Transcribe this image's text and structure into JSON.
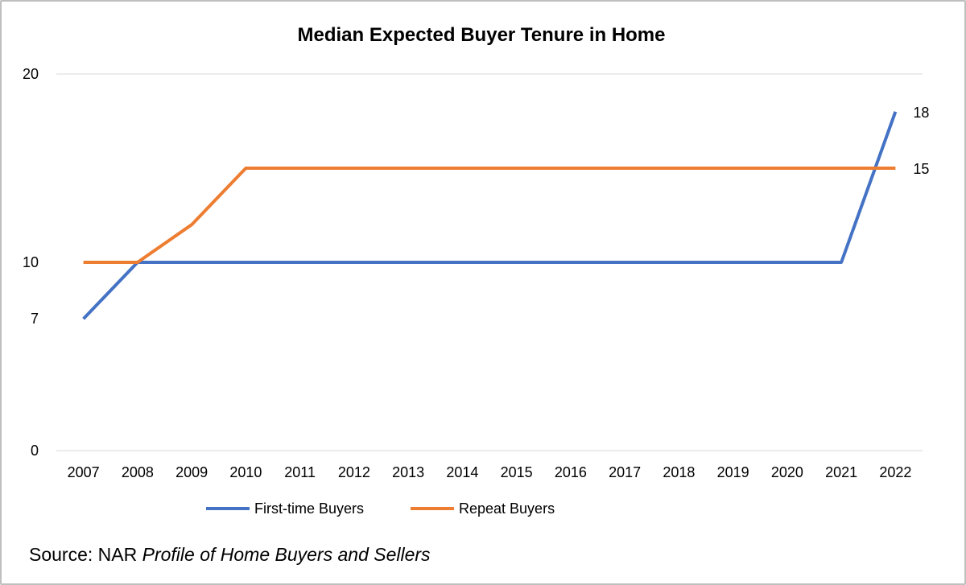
{
  "chart_data": {
    "type": "line",
    "title": "Median Expected Buyer Tenure in Home",
    "xlabel": "",
    "ylabel": "",
    "categories": [
      "2007",
      "2008",
      "2009",
      "2010",
      "2011",
      "2012",
      "2013",
      "2014",
      "2015",
      "2016",
      "2017",
      "2018",
      "2019",
      "2020",
      "2021",
      "2022"
    ],
    "ylim": [
      0,
      20
    ],
    "y_ticks": [
      "0",
      "7",
      "10",
      "20"
    ],
    "y_tick_values": [
      0,
      7,
      10,
      20
    ],
    "grid": "horizontal",
    "legend_position": "bottom",
    "series": [
      {
        "name": "First-time Buyers",
        "color": "#4472c4",
        "values": [
          7,
          10,
          10,
          10,
          10,
          10,
          10,
          10,
          10,
          10,
          10,
          10,
          10,
          10,
          10,
          18
        ],
        "end_label": "18"
      },
      {
        "name": "Repeat Buyers",
        "color": "#ed7d31",
        "values": [
          10,
          10,
          12,
          15,
          15,
          15,
          15,
          15,
          15,
          15,
          15,
          15,
          15,
          15,
          15,
          15
        ],
        "end_label": "15"
      }
    ]
  },
  "source": {
    "prefix": "Source: NAR ",
    "italic": "Profile of Home Buyers and Sellers"
  }
}
